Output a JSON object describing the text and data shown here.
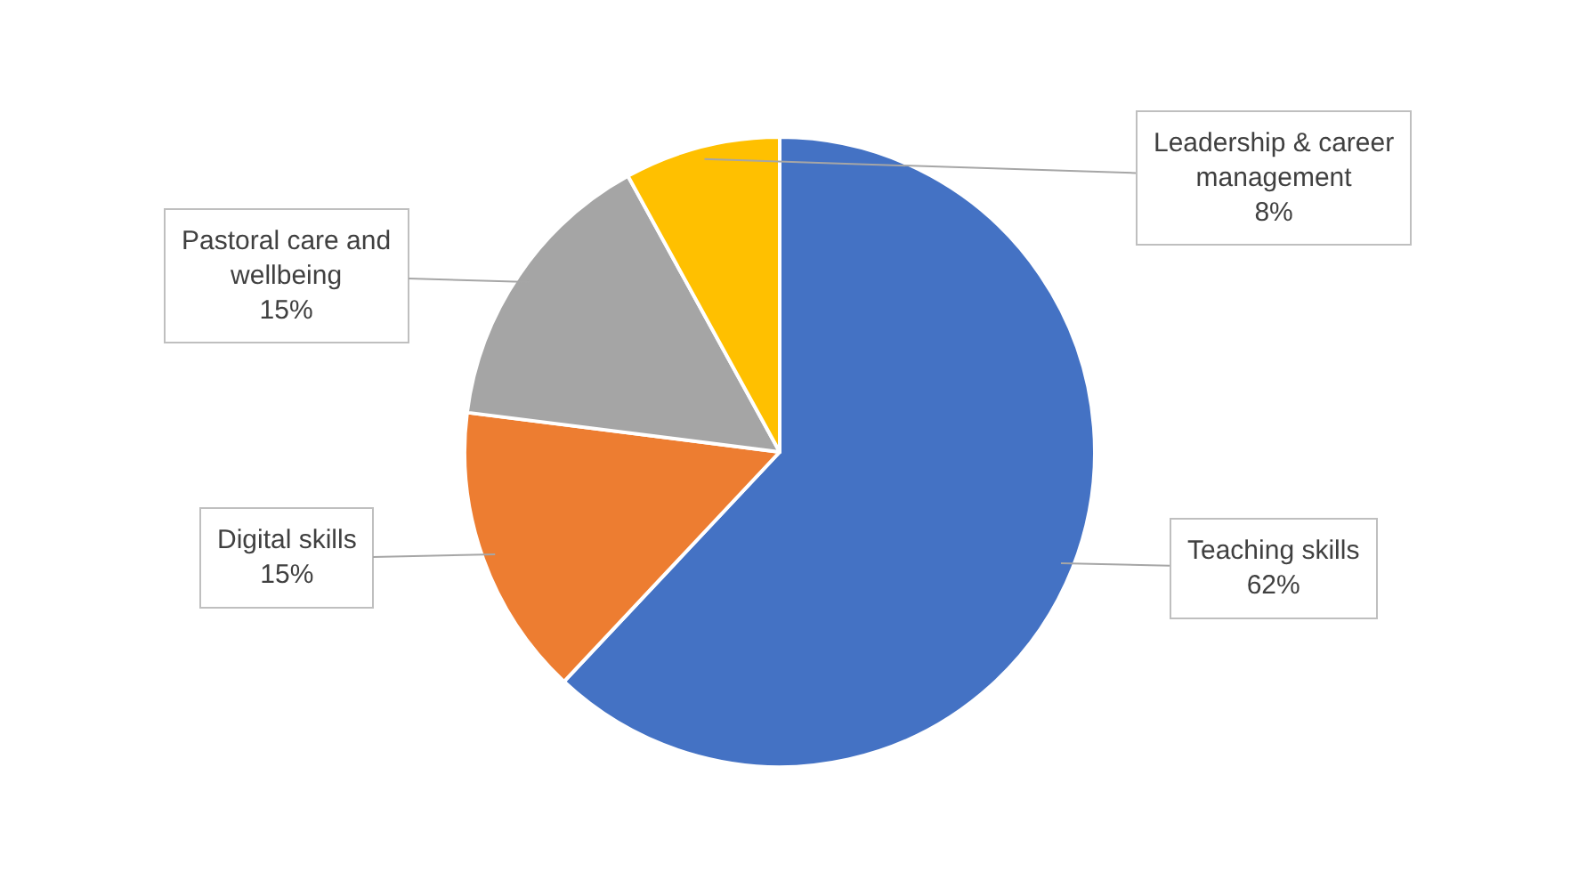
{
  "chart_data": {
    "type": "pie",
    "categories": [
      "Teaching skills",
      "Digital skills",
      "Pastoral care and wellbeing",
      "Leadership & career management"
    ],
    "values": [
      62,
      15,
      15,
      8
    ],
    "value_labels": [
      "62%",
      "15%",
      "15%",
      "8%"
    ],
    "colors": [
      "#4472c4",
      "#ed7d31",
      "#a5a5a5",
      "#ffc000"
    ],
    "legend": false
  }
}
